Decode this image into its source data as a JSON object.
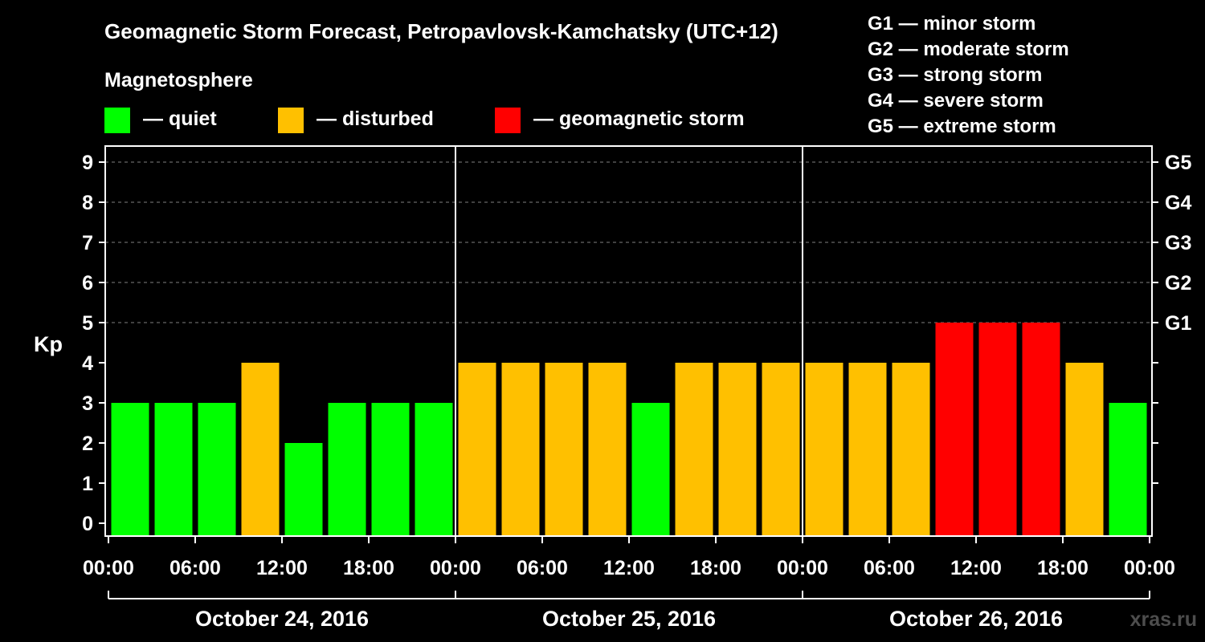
{
  "chart_data": {
    "type": "bar",
    "title": "Geomagnetic Storm Forecast, Petropavlovsk-Kamchatsky (UTC+12)",
    "ylabel": "Kp",
    "ylim": [
      0,
      9
    ],
    "y_ticks": [
      "0",
      "1",
      "2",
      "3",
      "4",
      "5",
      "6",
      "7",
      "8",
      "9"
    ],
    "right_ticks": [
      {
        "value": 5,
        "label": "G1"
      },
      {
        "value": 6,
        "label": "G2"
      },
      {
        "value": 7,
        "label": "G3"
      },
      {
        "value": 8,
        "label": "G4"
      },
      {
        "value": 9,
        "label": "G5"
      }
    ],
    "x_tick_labels": [
      "00:00",
      "06:00",
      "12:00",
      "18:00",
      "00:00",
      "06:00",
      "12:00",
      "18:00",
      "00:00",
      "06:00",
      "12:00",
      "18:00",
      "00:00"
    ],
    "days": [
      "October 24, 2016",
      "October 25, 2016",
      "October 26, 2016"
    ],
    "values": [
      3,
      3,
      3,
      4,
      2,
      3,
      3,
      3,
      4,
      4,
      4,
      4,
      3,
      4,
      4,
      4,
      4,
      4,
      4,
      5,
      5,
      5,
      4,
      3
    ],
    "status": [
      "quiet",
      "quiet",
      "quiet",
      "disturbed",
      "quiet",
      "quiet",
      "quiet",
      "quiet",
      "disturbed",
      "disturbed",
      "disturbed",
      "disturbed",
      "quiet",
      "disturbed",
      "disturbed",
      "disturbed",
      "disturbed",
      "disturbed",
      "disturbed",
      "storm",
      "storm",
      "storm",
      "disturbed",
      "quiet"
    ],
    "grid": true,
    "colors": {
      "quiet": "#00ff00",
      "disturbed": "#ffc000",
      "storm": "#ff0000",
      "background": "#000000",
      "axis": "#ffffff"
    }
  },
  "legend": {
    "heading": "Magnetosphere",
    "items": [
      {
        "key": "quiet",
        "label": "— quiet",
        "color": "#00ff00"
      },
      {
        "key": "disturbed",
        "label": "— disturbed",
        "color": "#ffc000"
      },
      {
        "key": "storm",
        "label": "— geomagnetic storm",
        "color": "#ff0000"
      }
    ]
  },
  "storm_scale": [
    "G1 — minor storm",
    "G2 — moderate storm",
    "G3 — strong storm",
    "G4 — severe storm",
    "G5 — extreme storm"
  ],
  "watermark": "xras.ru"
}
